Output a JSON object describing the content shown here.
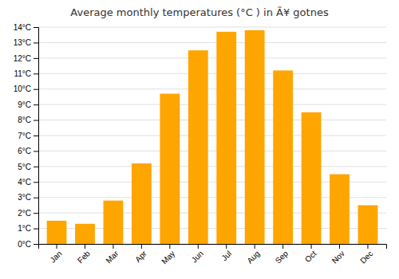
{
  "chart_data": {
    "type": "bar",
    "title": "Average monthly temperatures (°C ) in Ã¥ gotnes",
    "categories": [
      "Jan",
      "Feb",
      "Mar",
      "Apr",
      "May",
      "Jun",
      "Jul",
      "Aug",
      "Sep",
      "Oct",
      "Nov",
      "Dec"
    ],
    "values": [
      1.5,
      1.3,
      2.8,
      5.2,
      9.7,
      12.5,
      13.7,
      13.8,
      11.2,
      8.5,
      4.5,
      2.5
    ],
    "color": "#FFA500",
    "ylim": [
      0,
      14
    ],
    "yticks": [
      {
        "value": 0,
        "label": "0°C"
      },
      {
        "value": 1,
        "label": "1°C"
      },
      {
        "value": 2,
        "label": "2°C"
      },
      {
        "value": 3,
        "label": "3°C"
      },
      {
        "value": 4,
        "label": "4°C"
      },
      {
        "value": 5,
        "label": "5°C"
      },
      {
        "value": 6,
        "label": "6°C"
      },
      {
        "value": 7,
        "label": "7°C"
      },
      {
        "value": 8,
        "label": "8°C"
      },
      {
        "value": 9,
        "label": "9°C"
      },
      {
        "value": 10,
        "label": "10°C"
      },
      {
        "value": 11,
        "label": "11°C"
      },
      {
        "value": 12,
        "label": "12°C"
      },
      {
        "value": 13,
        "label": "13°C"
      },
      {
        "value": 14,
        "label": "14°C"
      }
    ],
    "grid": true
  }
}
